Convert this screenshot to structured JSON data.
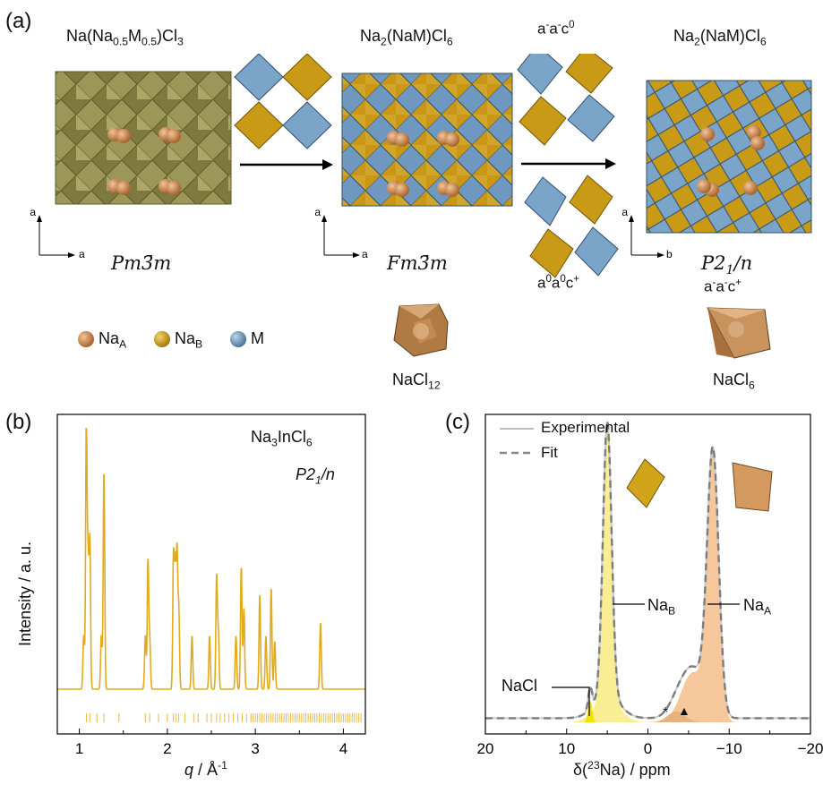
{
  "panel_a": {
    "label": "(a)",
    "formula1": "Na(Na0.5M0.5)Cl3",
    "formula2": "Na2(NaM)Cl6",
    "tilt1": "a-a-c0",
    "formula3": "Na2(NaM)Cl6",
    "tilt2": "a0a0c+",
    "tilt3": "a-a-c+",
    "sg1": "Pm3̄m",
    "sg2": "Fm3̄m",
    "sg3": "P21/n",
    "axes1": [
      "a",
      "a"
    ],
    "axes2": [
      "a",
      "a"
    ],
    "axes3": [
      "a",
      "b"
    ],
    "legend": [
      "NaA",
      "NaB",
      "M"
    ],
    "poly1": "NaCl12",
    "poly2": "NaCl6",
    "colors": {
      "NaA": "#d38a4e",
      "NaB": "#d4a21c",
      "M": "#6f98c0",
      "olive": "#8f8a4a",
      "gold": "#c99a16",
      "blue": "#7aa4c8"
    }
  },
  "panel_b": {
    "label": "(b)",
    "compound": "Na3InCl6",
    "spacegroup": "P21/n",
    "ylabel": "Intensity / a. u.",
    "xlabel": "q / Å-1",
    "xticks": [
      "1",
      "2",
      "3",
      "4"
    ]
  },
  "panel_c": {
    "label": "(c)",
    "legend_experimental": "Experimental",
    "legend_fit": "Fit",
    "label_NaB": "NaB",
    "label_NaA": "NaA",
    "label_NaCl": "NaCl",
    "star": "*",
    "triangle": "▲",
    "xlabel": "δ(23Na) / ppm",
    "xticks": [
      "20",
      "10",
      "0",
      "−10",
      "−20"
    ]
  },
  "chart_data": [
    {
      "type": "line",
      "x": [
        0.8,
        1.0,
        1.05,
        1.08,
        1.1,
        1.12,
        1.15,
        1.2,
        1.25,
        1.28,
        1.31,
        1.4,
        1.6,
        1.75,
        1.78,
        1.8,
        1.83,
        1.9,
        2.0,
        2.07,
        2.09,
        2.11,
        2.13,
        2.16,
        2.2,
        2.28,
        2.33,
        2.4,
        2.48,
        2.56,
        2.58,
        2.62,
        2.7,
        2.78,
        2.84,
        2.87,
        2.95,
        3.05,
        3.12,
        3.18,
        3.22,
        3.3,
        3.4,
        3.5,
        3.6,
        3.7,
        3.74,
        3.8,
        3.9,
        4.0,
        4.1,
        4.2
      ],
      "y": [
        0.05,
        0.06,
        0.2,
        1.0,
        0.45,
        0.55,
        0.12,
        0.08,
        0.2,
        0.82,
        0.1,
        0.06,
        0.05,
        0.2,
        0.48,
        0.18,
        0.06,
        0.1,
        0.08,
        0.5,
        0.45,
        0.5,
        0.3,
        0.1,
        0.08,
        0.2,
        0.12,
        0.07,
        0.2,
        0.42,
        0.2,
        0.1,
        0.12,
        0.2,
        0.46,
        0.3,
        0.1,
        0.35,
        0.2,
        0.38,
        0.18,
        0.1,
        0.15,
        0.12,
        0.14,
        0.1,
        0.25,
        0.08,
        0.07,
        0.1,
        0.05,
        0.1
      ],
      "xlim": [
        0.75,
        4.25
      ],
      "title": "",
      "xlabel": "q / Å-1",
      "ylabel": "Intensity / a. u."
    },
    {
      "type": "line",
      "x": [
        20,
        10,
        8,
        7,
        6,
        5.5,
        5,
        4.5,
        4,
        3,
        2,
        1,
        0,
        -1,
        -2,
        -3,
        -4,
        -5,
        -6,
        -7,
        -7.5,
        -8,
        -8.5,
        -9,
        -10,
        -11,
        -12,
        -15,
        -20
      ],
      "series": [
        {
          "name": "Experimental",
          "values": [
            0,
            0.02,
            0.04,
            0.08,
            0.06,
            0.3,
            1.0,
            0.35,
            0.05,
            0.02,
            0.02,
            0.03,
            0.04,
            0.05,
            0.06,
            0.08,
            0.1,
            0.15,
            0.25,
            0.45,
            0.7,
            0.95,
            0.7,
            0.3,
            0.05,
            0.02,
            0.01,
            0,
            0
          ]
        },
        {
          "name": "Fit",
          "values": [
            0,
            0.02,
            0.04,
            0.08,
            0.06,
            0.3,
            1.0,
            0.35,
            0.05,
            0.02,
            0.02,
            0.03,
            0.04,
            0.05,
            0.06,
            0.08,
            0.1,
            0.15,
            0.25,
            0.45,
            0.7,
            0.95,
            0.7,
            0.3,
            0.05,
            0.02,
            0.01,
            0,
            0
          ]
        }
      ],
      "xlim": [
        20,
        -20
      ],
      "xlabel": "δ(23Na) / ppm",
      "ylabel": ""
    }
  ]
}
